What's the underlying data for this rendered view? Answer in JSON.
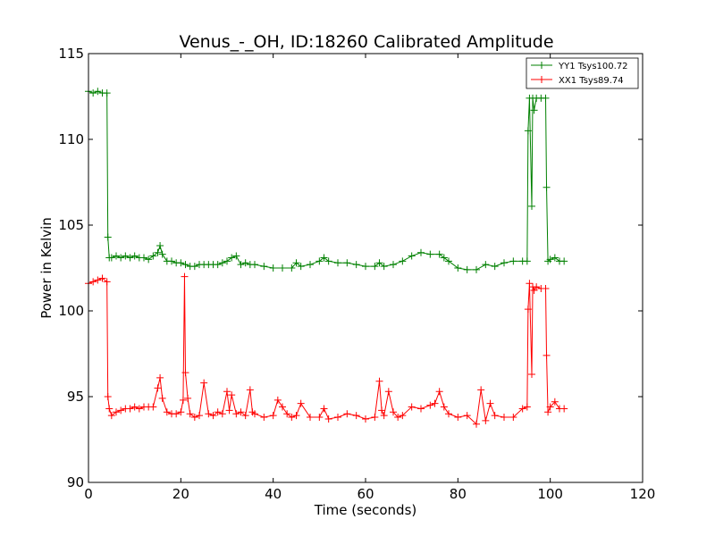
{
  "chart_data": {
    "type": "line",
    "title": "Venus_-_OH, ID:18260 Calibrated Amplitude",
    "xlabel": "Time (seconds)",
    "ylabel": "Power in Kelvin",
    "xlim": [
      0,
      120
    ],
    "ylim": [
      90,
      115
    ],
    "xticks": [
      0,
      20,
      40,
      60,
      80,
      100,
      120
    ],
    "yticks": [
      90,
      95,
      100,
      105,
      110,
      115
    ],
    "grid": false,
    "legend_position": "top-right",
    "marker": "plus",
    "series": [
      {
        "name": "YY1 Tsys100.72",
        "color": "#008000",
        "x": [
          0,
          1,
          2,
          3,
          4,
          4.2,
          4.5,
          5,
          6,
          7,
          8,
          9,
          10,
          11,
          12,
          13,
          14,
          15,
          15.5,
          16,
          17,
          18,
          19,
          20,
          21,
          22,
          23,
          24,
          25,
          26,
          27,
          28,
          29,
          30,
          31,
          32,
          33,
          34,
          35,
          36,
          38,
          40,
          42,
          44,
          45,
          46,
          48,
          50,
          51,
          52,
          54,
          56,
          58,
          60,
          62,
          63,
          64,
          66,
          68,
          70,
          72,
          74,
          76,
          77,
          78,
          80,
          82,
          84,
          86,
          88,
          90,
          92,
          94,
          95,
          95.2,
          95.5,
          96,
          96.2,
          96.5,
          97,
          98,
          99,
          99.2,
          99.5,
          100,
          101,
          102,
          103
        ],
        "values": [
          112.8,
          112.7,
          112.8,
          112.7,
          112.7,
          104.3,
          103.1,
          103.1,
          103.2,
          103.1,
          103.2,
          103.1,
          103.2,
          103.1,
          103.1,
          103.0,
          103.2,
          103.4,
          103.8,
          103.3,
          102.9,
          102.9,
          102.8,
          102.8,
          102.7,
          102.6,
          102.6,
          102.7,
          102.7,
          102.7,
          102.7,
          102.7,
          102.8,
          102.9,
          103.1,
          103.2,
          102.7,
          102.8,
          102.7,
          102.7,
          102.6,
          102.5,
          102.5,
          102.5,
          102.8,
          102.6,
          102.7,
          102.9,
          103.1,
          102.9,
          102.8,
          102.8,
          102.7,
          102.6,
          102.6,
          102.8,
          102.6,
          102.7,
          102.9,
          103.2,
          103.4,
          103.3,
          103.3,
          103.1,
          102.9,
          102.5,
          102.4,
          102.4,
          102.7,
          102.6,
          102.8,
          102.9,
          102.9,
          102.9,
          110.5,
          112.4,
          106.1,
          112.4,
          111.7,
          112.4,
          112.4,
          112.4,
          107.2,
          102.9,
          103.0,
          103.1,
          102.9,
          102.9
        ]
      },
      {
        "name": "XX1 Tsys89.74",
        "color": "#ff0000",
        "x": [
          0,
          1,
          2,
          3,
          4,
          4.2,
          4.5,
          5,
          6,
          7,
          8,
          9,
          10,
          11,
          12,
          13,
          14,
          15,
          15.5,
          16,
          17,
          18,
          19,
          20,
          20.5,
          20.8,
          21,
          21.5,
          22,
          23,
          24,
          25,
          26,
          27,
          28,
          29,
          30,
          30.5,
          31,
          32,
          33,
          34,
          35,
          35.5,
          36,
          38,
          40,
          41,
          42,
          43,
          44,
          45,
          46,
          48,
          50,
          51,
          52,
          54,
          56,
          58,
          60,
          62,
          63,
          63.5,
          64,
          65,
          66,
          67,
          68,
          70,
          72,
          74,
          75,
          76,
          77,
          78,
          80,
          82,
          84,
          85,
          86,
          87,
          88,
          90,
          92,
          94,
          95,
          95.2,
          95.5,
          96,
          96.2,
          96.5,
          97,
          98,
          99,
          99.2,
          99.5,
          100,
          101,
          102,
          103
        ],
        "values": [
          101.6,
          101.7,
          101.8,
          101.9,
          101.7,
          95.0,
          94.3,
          93.9,
          94.1,
          94.2,
          94.3,
          94.3,
          94.4,
          94.3,
          94.4,
          94.4,
          94.4,
          95.5,
          96.1,
          94.9,
          94.1,
          94.0,
          94.0,
          94.1,
          94.8,
          102.0,
          96.4,
          94.9,
          94.0,
          93.8,
          93.9,
          95.8,
          94.0,
          93.9,
          94.1,
          94.0,
          95.3,
          94.2,
          95.1,
          94.0,
          94.1,
          93.9,
          95.4,
          94.1,
          94.0,
          93.8,
          93.9,
          94.8,
          94.4,
          94.0,
          93.8,
          93.9,
          94.6,
          93.8,
          93.8,
          94.3,
          93.7,
          93.8,
          94.0,
          93.9,
          93.7,
          93.8,
          95.9,
          94.2,
          93.9,
          95.3,
          94.1,
          93.8,
          93.9,
          94.4,
          94.3,
          94.5,
          94.6,
          95.3,
          94.4,
          94.0,
          93.8,
          93.9,
          93.4,
          95.4,
          93.6,
          94.6,
          93.9,
          93.8,
          93.8,
          94.3,
          94.4,
          100.1,
          101.6,
          96.3,
          101.4,
          101.2,
          101.4,
          101.3,
          101.3,
          97.4,
          94.1,
          94.4,
          94.7,
          94.3,
          94.3
        ]
      }
    ]
  }
}
